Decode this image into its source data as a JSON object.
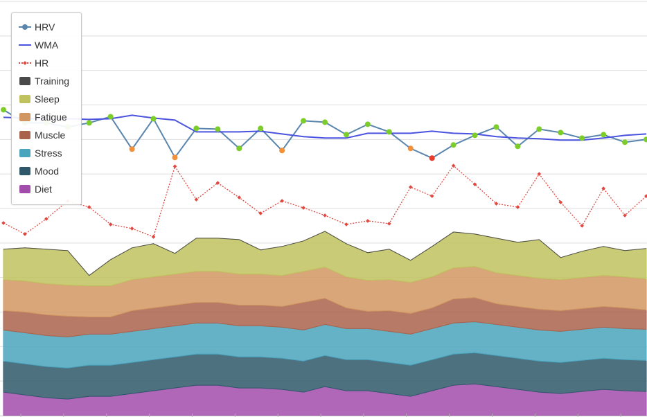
{
  "chart_data": {
    "type": "line",
    "x": [
      0,
      1,
      2,
      3,
      4,
      5,
      6,
      7,
      8,
      9,
      10,
      11,
      12,
      13,
      14,
      15,
      16,
      17,
      18,
      19,
      20,
      21,
      22,
      23,
      24,
      25,
      26,
      27,
      28,
      29,
      30
    ],
    "ylim": [
      0,
      600
    ],
    "grid": true,
    "legend_position": "top-left",
    "line_series": [
      {
        "name": "HRV",
        "color": "#5a86ae",
        "values": [
          443,
          424,
          424,
          418,
          424,
          433,
          386,
          430,
          374,
          416,
          415,
          387,
          416,
          384,
          427,
          425,
          407,
          422,
          411,
          387,
          373,
          392,
          406,
          418,
          390,
          415,
          410,
          402,
          407,
          396,
          400
        ]
      },
      {
        "name": "WMA",
        "color": "#4a52e0",
        "values": [
          432,
          431,
          429,
          430,
          429,
          430,
          435,
          431,
          428,
          411,
          411,
          411,
          412,
          408,
          404,
          402,
          402,
          409,
          409,
          409,
          412,
          409,
          408,
          404,
          402,
          401,
          399,
          399,
          402,
          406,
          408
        ]
      },
      {
        "name": "HR",
        "color": "#e0473f",
        "values": [
          279,
          263,
          285,
          311,
          302,
          277,
          271,
          259,
          361,
          313,
          337,
          316,
          293,
          311,
          301,
          290,
          277,
          282,
          278,
          331,
          318,
          362,
          335,
          307,
          302,
          350,
          309,
          275,
          329,
          290,
          318
        ]
      }
    ],
    "point_colors": {
      "good": "#7ccd2a",
      "warn": "#f39038",
      "bad": "#e53c2c"
    },
    "hrv_point_status": [
      "good",
      "good",
      "good",
      "good",
      "good",
      "good",
      "warn",
      "good",
      "warn",
      "good",
      "good",
      "good",
      "good",
      "warn",
      "good",
      "good",
      "good",
      "good",
      "good",
      "warn",
      "bad",
      "good",
      "good",
      "good",
      "good",
      "good",
      "good",
      "good",
      "good",
      "good",
      "good"
    ],
    "area_series": [
      {
        "name": "Training",
        "color": "#4a4a4a",
        "values": [
          0,
          0,
          0,
          0,
          0,
          0,
          0,
          0,
          0,
          0,
          0,
          0,
          0,
          0,
          0,
          0,
          0,
          0,
          0,
          0,
          0,
          0,
          0,
          0,
          0,
          0,
          0,
          0,
          0,
          0,
          0
        ]
      },
      {
        "name": "Sleep",
        "color": "#bfc25e",
        "values": [
          44,
          48,
          50,
          50,
          15,
          38,
          46,
          48,
          30,
          48,
          48,
          50,
          35,
          42,
          44,
          52,
          48,
          40,
          44,
          32,
          44,
          52,
          47,
          50,
          48,
          56,
          32,
          38,
          42,
          38,
          44
        ]
      },
      {
        "name": "Fatigue",
        "color": "#d19662",
        "values": [
          45,
          45,
          45,
          45,
          45,
          45,
          45,
          45,
          45,
          45,
          45,
          45,
          45,
          45,
          45,
          45,
          45,
          45,
          45,
          45,
          45,
          45,
          45,
          45,
          45,
          45,
          45,
          45,
          45,
          45,
          45
        ]
      },
      {
        "name": "Muscle",
        "color": "#a9634c",
        "values": [
          28,
          30,
          30,
          30,
          25,
          25,
          30,
          30,
          30,
          30,
          30,
          30,
          30,
          30,
          40,
          38,
          30,
          25,
          30,
          30,
          30,
          35,
          35,
          30,
          30,
          30,
          30,
          30,
          30,
          30,
          28
        ]
      },
      {
        "name": "Stress",
        "color": "#4aa4bd",
        "values": [
          45,
          45,
          45,
          45,
          45,
          45,
          45,
          45,
          45,
          45,
          45,
          45,
          45,
          45,
          45,
          45,
          45,
          45,
          45,
          45,
          45,
          45,
          45,
          45,
          45,
          45,
          45,
          45,
          45,
          45,
          45
        ]
      },
      {
        "name": "Mood",
        "color": "#2f586a",
        "values": [
          45,
          45,
          45,
          45,
          45,
          45,
          45,
          45,
          45,
          45,
          45,
          45,
          45,
          45,
          45,
          45,
          45,
          45,
          45,
          45,
          45,
          45,
          45,
          45,
          45,
          45,
          45,
          45,
          45,
          45,
          45
        ]
      },
      {
        "name": "Diet",
        "color": "#a24cac",
        "values": [
          34,
          30,
          26,
          24,
          28,
          28,
          32,
          36,
          40,
          44,
          44,
          40,
          40,
          38,
          34,
          42,
          36,
          36,
          32,
          28,
          36,
          44,
          46,
          42,
          38,
          34,
          32,
          35,
          38,
          36,
          35
        ]
      }
    ]
  },
  "legend": {
    "items": [
      {
        "label": "HRV",
        "kind": "line-dot",
        "color": "#5a86ae"
      },
      {
        "label": "WMA",
        "kind": "line",
        "color": "#4a52e0"
      },
      {
        "label": "HR",
        "kind": "dotted",
        "color": "#e0473f"
      },
      {
        "label": "Training",
        "kind": "box",
        "color": "#4a4a4a"
      },
      {
        "label": "Sleep",
        "kind": "box",
        "color": "#bfc25e"
      },
      {
        "label": "Fatigue",
        "kind": "box",
        "color": "#d19662"
      },
      {
        "label": "Muscle",
        "kind": "box",
        "color": "#a9634c"
      },
      {
        "label": "Stress",
        "kind": "box",
        "color": "#4aa4bd"
      },
      {
        "label": "Mood",
        "kind": "box",
        "color": "#2f586a"
      },
      {
        "label": "Diet",
        "kind": "box",
        "color": "#a24cac"
      }
    ]
  }
}
